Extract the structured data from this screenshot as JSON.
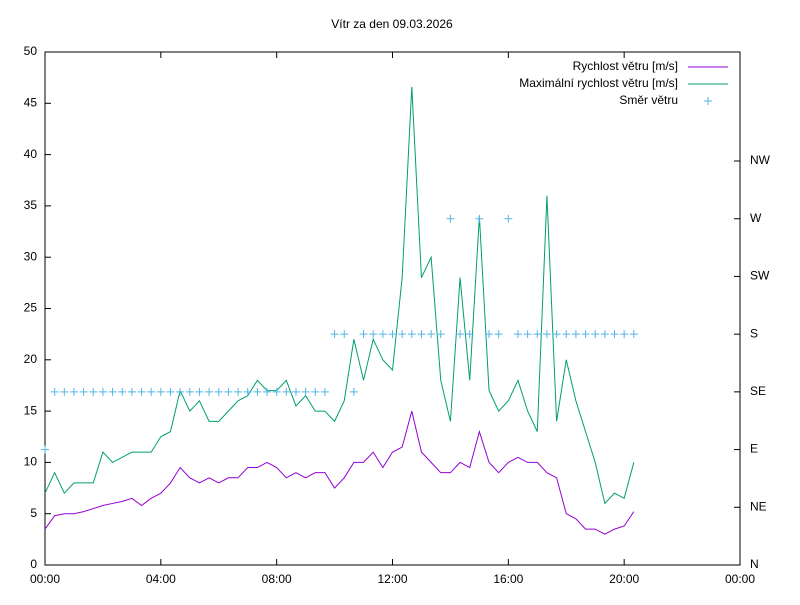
{
  "chart_data": {
    "type": "line",
    "title": "Vítr za den 09.03.2026",
    "x": [
      0,
      20,
      40,
      60,
      80,
      100,
      120,
      140,
      160,
      180,
      200,
      220,
      240,
      260,
      280,
      300,
      320,
      340,
      360,
      380,
      400,
      420,
      440,
      460,
      480,
      500,
      520,
      540,
      560,
      580,
      600,
      620,
      640,
      660,
      680,
      700,
      720,
      740,
      760,
      780,
      800,
      820,
      840,
      860,
      880,
      900,
      920,
      940,
      960,
      980,
      1000,
      1020,
      1040,
      1060,
      1080,
      1100,
      1120,
      1140,
      1160,
      1180,
      1200,
      1220
    ],
    "xlim": [
      0,
      1440
    ],
    "xticks": [
      {
        "value": 0,
        "label": "00:00"
      },
      {
        "value": 240,
        "label": "04:00"
      },
      {
        "value": 480,
        "label": "08:00"
      },
      {
        "value": 720,
        "label": "12:00"
      },
      {
        "value": 960,
        "label": "16:00"
      },
      {
        "value": 1200,
        "label": "20:00"
      },
      {
        "value": 1440,
        "label": "00:00"
      }
    ],
    "ylim": [
      0,
      50
    ],
    "yticks": [
      0,
      5,
      10,
      15,
      20,
      25,
      30,
      35,
      40,
      45,
      50
    ],
    "y2lim": [
      0,
      400
    ],
    "y2ticks": [
      {
        "value": 0,
        "label": "N"
      },
      {
        "value": 45,
        "label": "NE"
      },
      {
        "value": 90,
        "label": "E"
      },
      {
        "value": 135,
        "label": "SE"
      },
      {
        "value": 180,
        "label": "S"
      },
      {
        "value": 225,
        "label": "SW"
      },
      {
        "value": 270,
        "label": "W"
      },
      {
        "value": 315,
        "label": "NW"
      }
    ],
    "legend": "top-right",
    "series": [
      {
        "name": "Rychlost větru [m/s]",
        "color": "#9400d3",
        "style": "line",
        "values": [
          3.5,
          4.8,
          5,
          5,
          5.2,
          5.5,
          5.8,
          6,
          6.2,
          6.5,
          5.8,
          6.5,
          7,
          8,
          9.5,
          8.5,
          8,
          8.5,
          8,
          8.5,
          8.5,
          9.5,
          9.5,
          10,
          9.5,
          8.5,
          9,
          8.5,
          9,
          9,
          7.5,
          8.5,
          10,
          10,
          11,
          9.5,
          11,
          11.5,
          15,
          11,
          10,
          9,
          9,
          10,
          9.5,
          13,
          10,
          9,
          10,
          10.5,
          10,
          10,
          9,
          8.5,
          5,
          4.5,
          3.5,
          3.5,
          3,
          3.5,
          3.8,
          5.2
        ]
      },
      {
        "name": "Maximální rychlost větru [m/s]",
        "color": "#009e73",
        "style": "line",
        "values": [
          7,
          9,
          7,
          8,
          8,
          8,
          11,
          10,
          10.5,
          11,
          11,
          11,
          12.5,
          13,
          17,
          15,
          16,
          14,
          14,
          15,
          16,
          16.5,
          18,
          17,
          17,
          18,
          15.5,
          16.5,
          15,
          15,
          14,
          16,
          22,
          18,
          22,
          20,
          19,
          28,
          46.6,
          28,
          30,
          18,
          14,
          28,
          18,
          34,
          17,
          15,
          16,
          18,
          15,
          13,
          36,
          14,
          20,
          16,
          13,
          10,
          6,
          7,
          6.5,
          10
        ]
      },
      {
        "name": "Směr větru",
        "color": "#56b4e9",
        "style": "points",
        "axis": "y2",
        "values": [
          90,
          135,
          135,
          135,
          135,
          135,
          135,
          135,
          135,
          135,
          135,
          135,
          135,
          135,
          135,
          135,
          135,
          135,
          135,
          135,
          135,
          135,
          135,
          135,
          135,
          135,
          135,
          135,
          135,
          135,
          180,
          180,
          135,
          180,
          180,
          180,
          180,
          180,
          180,
          180,
          180,
          180,
          270,
          180,
          180,
          270,
          180,
          180,
          270,
          180,
          180,
          180,
          180,
          180,
          180,
          180,
          180,
          180,
          180,
          180,
          180,
          180
        ]
      }
    ]
  }
}
